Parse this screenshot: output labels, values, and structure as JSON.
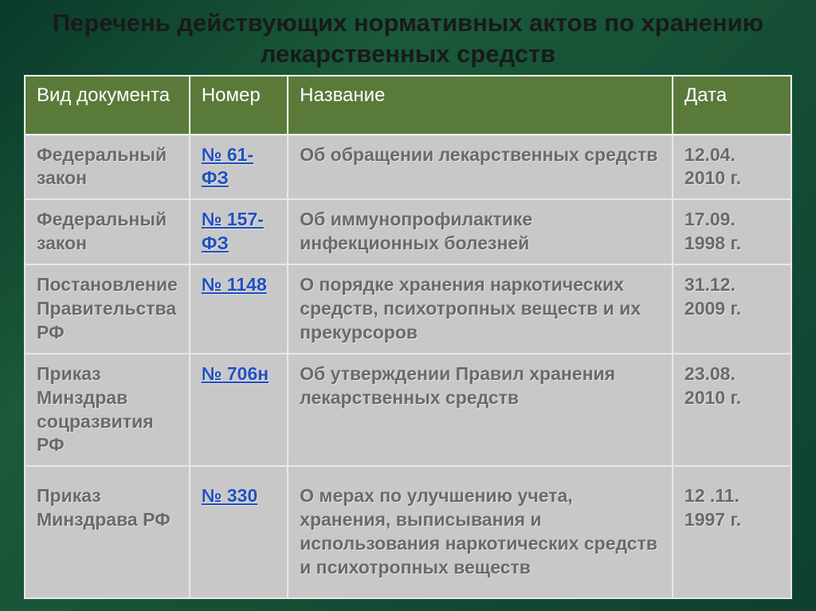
{
  "title": "Перечень действующих нормативных актов по хранению лекарственных средств",
  "columns": [
    "Вид документа",
    "Номер",
    "Название",
    "Дата"
  ],
  "rows": [
    {
      "doc": "Федеральный закон",
      "num": "№ 61-ФЗ",
      "name": "Об обращении лекарственных средств",
      "date": "12.04. 2010 г."
    },
    {
      "doc": "Федеральный закон",
      "num": "№ 157-ФЗ",
      "name": "Об иммунопрофилактике инфекционных болезней",
      "date": "17.09. 1998 г."
    },
    {
      "doc": "Постановление Правительства РФ",
      "num": "№ 1148",
      "name": "О порядке хранения наркотических средств, психотропных веществ и их прекурсоров",
      "date": "31.12. 2009 г."
    },
    {
      "doc": "Приказ Минздрав соцразвития РФ",
      "num": "№ 706н",
      "name": "Об утверждении Правил хранения лекарственных средств",
      "date": "23.08. 2010 г."
    },
    {
      "doc": "Приказ Минздрава РФ",
      "num": "№ 330",
      "name": "О мерах по улучшению учета, хранения, выписывания и использования наркотических средств и психотропных веществ",
      "date": "12 .11. 1997 г."
    }
  ],
  "colors": {
    "header_bg": "#5a7a3a",
    "header_text": "#ffffff",
    "cell_bg": "#c8c8c8",
    "cell_text": "#6a6a6a",
    "link": "#2050c0",
    "border": "#e8e8e8",
    "title_text": "#1a1a1a"
  },
  "fonts": {
    "title_size": 31,
    "header_size": 24,
    "cell_size": 23
  }
}
